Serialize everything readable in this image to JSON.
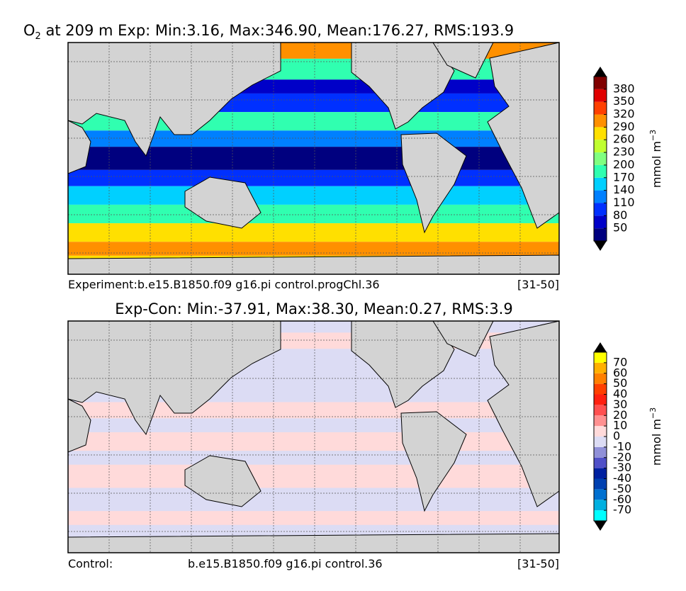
{
  "panels": [
    {
      "title_prefix": "O",
      "title_sub": "2",
      "title": " at 209 m Exp: Min:3.16, Max:346.90, Mean:176.27, RMS:193.9",
      "footer_left": "Experiment:b.e15.B1850.f09 g16.pi control.progChl.36",
      "footer_right": "[31-50]",
      "colorbar": {
        "label": "mmol m",
        "label_sup": "−3",
        "ticks": [
          50,
          80,
          110,
          140,
          170,
          200,
          230,
          260,
          290,
          320,
          350,
          380
        ],
        "colors": [
          "#00007f",
          "#0000c8",
          "#0030ff",
          "#0080ff",
          "#00d0ff",
          "#30ffb0",
          "#80ff80",
          "#c0ff30",
          "#ffe000",
          "#ff9000",
          "#ff4000",
          "#e00000",
          "#800000"
        ]
      }
    },
    {
      "title": "Exp-Con: Min:-37.91, Max:38.30, Mean:0.27, RMS:3.9",
      "footer_left": "Control:",
      "footer_center": "b.e15.B1850.f09 g16.pi control.36",
      "footer_right": "[31-50]",
      "colorbar": {
        "label": "mmol m",
        "label_sup": "−3",
        "ticks": [
          -70,
          -60,
          -50,
          -40,
          -30,
          -20,
          -10,
          0,
          10,
          20,
          30,
          40,
          50,
          60,
          70
        ],
        "colors": [
          "#00ffff",
          "#00b0e0",
          "#0070d0",
          "#0040b0",
          "#0020a0",
          "#5050c8",
          "#9090d8",
          "#dcdcf4",
          "#ffdada",
          "#ff9090",
          "#ff5050",
          "#ff2010",
          "#ff4000",
          "#ff8000",
          "#ffb000",
          "#ffff00"
        ]
      }
    }
  ]
}
